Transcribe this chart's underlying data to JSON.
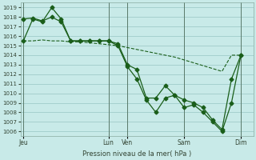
{
  "title": "Pression niveau de la mer( hPa )",
  "background_color": "#c8eae8",
  "grid_color": "#a0ccca",
  "line_color": "#1a5e1a",
  "ylim": [
    1005.5,
    1019.5
  ],
  "yticks": [
    1006,
    1007,
    1008,
    1009,
    1010,
    1011,
    1012,
    1013,
    1014,
    1015,
    1016,
    1017,
    1018,
    1019
  ],
  "xtick_labels": [
    "Jeu",
    "Lun",
    "Ven",
    "Sam",
    "Dim"
  ],
  "xtick_positions": [
    0,
    9,
    11,
    17,
    23
  ],
  "xlim": [
    -0.3,
    24.3
  ],
  "vline_positions": [
    0,
    9,
    11,
    17,
    23
  ],
  "line1_x": [
    0,
    1,
    2,
    3,
    4,
    5,
    6,
    7,
    8,
    9,
    10,
    11,
    12,
    13,
    14,
    15,
    16,
    17,
    18,
    19,
    20,
    21,
    22,
    23
  ],
  "line1_y": [
    1015.5,
    1015.5,
    1015.6,
    1015.5,
    1015.5,
    1015.4,
    1015.4,
    1015.3,
    1015.2,
    1015.1,
    1015.0,
    1014.8,
    1014.6,
    1014.4,
    1014.2,
    1014.0,
    1013.8,
    1013.5,
    1013.2,
    1012.9,
    1012.6,
    1012.3,
    1014.0,
    1014.0
  ],
  "line2_x": [
    0,
    1,
    2,
    3,
    4,
    5,
    6,
    7,
    8,
    9,
    10,
    11,
    12,
    13,
    14,
    15,
    16,
    17,
    18,
    19,
    20,
    21,
    22,
    23
  ],
  "line2_y": [
    1017.8,
    1017.9,
    1017.6,
    1018.0,
    1017.5,
    1015.5,
    1015.5,
    1015.5,
    1015.5,
    1015.5,
    1015.0,
    1012.8,
    1011.5,
    1009.3,
    1008.0,
    1009.5,
    1009.8,
    1009.3,
    1009.0,
    1008.5,
    1007.2,
    1006.2,
    1011.5,
    1014.0
  ],
  "line3_x": [
    0,
    1,
    2,
    3,
    4,
    5,
    6,
    7,
    8,
    9,
    10,
    11,
    12,
    13,
    14,
    15,
    16,
    17,
    18,
    19,
    20,
    21,
    22,
    23
  ],
  "line3_y": [
    1015.5,
    1017.8,
    1017.5,
    1019.0,
    1017.8,
    1015.5,
    1015.5,
    1015.5,
    1015.5,
    1015.5,
    1015.2,
    1013.0,
    1012.5,
    1009.5,
    1009.5,
    1010.8,
    1009.8,
    1008.5,
    1008.8,
    1008.0,
    1007.0,
    1006.0,
    1009.0,
    1014.0
  ]
}
